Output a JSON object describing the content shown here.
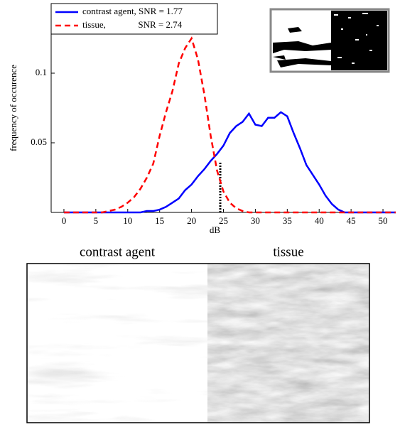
{
  "chart_data": {
    "type": "line",
    "x": [
      0,
      1,
      2,
      3,
      4,
      5,
      6,
      7,
      8,
      9,
      10,
      11,
      12,
      13,
      14,
      15,
      16,
      17,
      18,
      19,
      20,
      21,
      22,
      23,
      24,
      25,
      26,
      27,
      28,
      29,
      30,
      31,
      32,
      33,
      34,
      35,
      36,
      37,
      38,
      39,
      40,
      41,
      42,
      43,
      44,
      45,
      46,
      47,
      48,
      49,
      50,
      51,
      52
    ],
    "series": [
      {
        "name": "contrast agent, SNR = 1.77",
        "color": "#0000ff",
        "dash": "solid",
        "values": [
          0,
          0,
          0,
          0,
          0,
          0,
          0,
          0,
          0,
          0,
          0,
          0,
          0,
          0.001,
          0.001,
          0.002,
          0.004,
          0.007,
          0.01,
          0.016,
          0.02,
          0.026,
          0.031,
          0.037,
          0.042,
          0.048,
          0.057,
          0.062,
          0.065,
          0.071,
          0.063,
          0.062,
          0.068,
          0.068,
          0.072,
          0.069,
          0.057,
          0.046,
          0.034,
          0.027,
          0.02,
          0.012,
          0.006,
          0.002,
          0,
          0,
          0,
          0,
          0,
          0,
          0,
          0,
          0
        ]
      },
      {
        "name": "tissue,              SNR = 2.74",
        "color": "#ff0000",
        "dash": "dashed",
        "values": [
          0,
          0,
          0,
          0,
          0,
          0,
          0,
          0.001,
          0.002,
          0.004,
          0.007,
          0.011,
          0.017,
          0.025,
          0.035,
          0.055,
          0.072,
          0.087,
          0.107,
          0.118,
          0.125,
          0.11,
          0.085,
          0.055,
          0.03,
          0.015,
          0.007,
          0.003,
          0.001,
          0,
          0,
          0,
          0,
          0,
          0,
          0,
          0,
          0,
          0,
          0,
          0,
          0,
          0,
          0,
          0,
          0,
          0,
          0,
          0,
          0,
          0,
          0,
          0
        ]
      }
    ],
    "xlabel": "dB",
    "ylabel": "frequency of occurence",
    "xlim": [
      -2,
      52
    ],
    "ylim": [
      0,
      0.15
    ],
    "xticks": [
      0,
      5,
      10,
      15,
      20,
      25,
      30,
      35,
      40,
      45,
      50
    ],
    "yticks": [
      0.05,
      0.1
    ],
    "threshold_line": {
      "x": 24.5,
      "y": 0.036
    },
    "legend": "upper left"
  },
  "images": {
    "left_label": "contrast agent",
    "right_label": "tissue"
  }
}
